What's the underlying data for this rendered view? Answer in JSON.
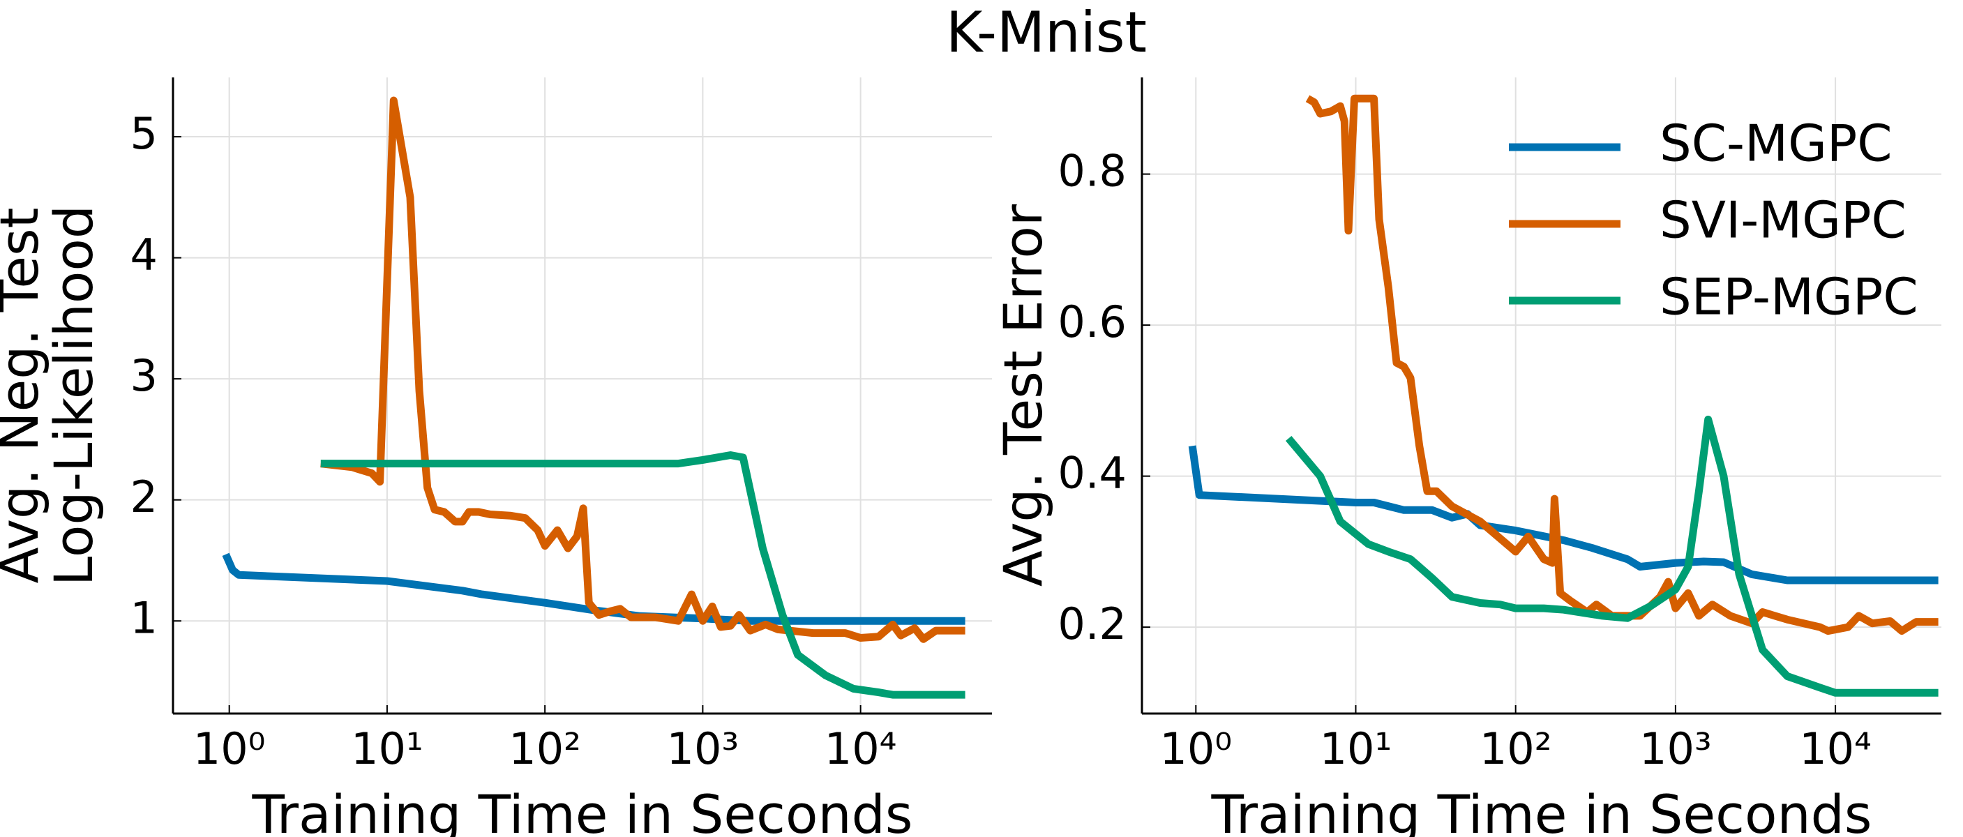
{
  "title": "K-Mnist",
  "chart_data": [
    {
      "type": "line",
      "xscale": "log",
      "grid": true,
      "legend": false,
      "xlabel": "Training Time in Seconds",
      "ylabel": [
        "Avg. Neg. Test",
        "Log-Likelihood"
      ],
      "xlim": [
        0.44,
        68000
      ],
      "ylim": [
        0.235,
        5.49
      ],
      "xticks": [
        {
          "value": 1,
          "label": "10⁰"
        },
        {
          "value": 10,
          "label": "10¹"
        },
        {
          "value": 100,
          "label": "10²"
        },
        {
          "value": 1000,
          "label": "10³"
        },
        {
          "value": 10000,
          "label": "10⁴"
        }
      ],
      "yticks": [
        1,
        2,
        3,
        4,
        5
      ],
      "series": [
        {
          "name": "SC-MGPC",
          "color": "#0072b2",
          "x": [
            0.95,
            1.05,
            1.15,
            10,
            30,
            40,
            100,
            200,
            400,
            1000,
            2000,
            46000
          ],
          "values": [
            1.55,
            1.42,
            1.38,
            1.33,
            1.25,
            1.22,
            1.15,
            1.09,
            1.04,
            1.02,
            1.0,
            1.0
          ]
        },
        {
          "name": "SVI-MGPC",
          "color": "#d55e00",
          "x": [
            3.8,
            6,
            8,
            9,
            11,
            14,
            16,
            18,
            20,
            23,
            27,
            30,
            33,
            38,
            45,
            60,
            75,
            90,
            100,
            120,
            140,
            160,
            175,
            190,
            220,
            260,
            300,
            350,
            500,
            700,
            850,
            1000,
            1150,
            1300,
            1500,
            1700,
            2000,
            2500,
            3000,
            5000,
            8000,
            10000,
            13000,
            16000,
            18000,
            22000,
            25000,
            30000,
            46000
          ],
          "values": [
            2.3,
            2.27,
            2.22,
            2.15,
            5.3,
            4.5,
            2.9,
            2.1,
            1.92,
            1.9,
            1.82,
            1.82,
            1.9,
            1.9,
            1.88,
            1.87,
            1.85,
            1.75,
            1.62,
            1.75,
            1.6,
            1.7,
            1.93,
            1.15,
            1.05,
            1.08,
            1.1,
            1.03,
            1.03,
            1.0,
            1.22,
            1.0,
            1.12,
            0.95,
            0.96,
            1.05,
            0.92,
            0.97,
            0.93,
            0.9,
            0.9,
            0.86,
            0.87,
            0.97,
            0.88,
            0.94,
            0.85,
            0.92,
            0.92
          ]
        },
        {
          "name": "SEP-MGPC",
          "color": "#009e73",
          "x": [
            3.8,
            700,
            1000,
            1500,
            1800,
            2400,
            3200,
            4000,
            6000,
            9000,
            13000,
            16000,
            46000
          ],
          "values": [
            2.3,
            2.3,
            2.33,
            2.37,
            2.35,
            1.6,
            1.05,
            0.72,
            0.55,
            0.44,
            0.41,
            0.39,
            0.39
          ]
        }
      ]
    },
    {
      "type": "line",
      "xscale": "log",
      "grid": true,
      "legend": "upper right",
      "xlabel": "Training Time in Seconds",
      "ylabel": [
        "Avg. Test Error"
      ],
      "xlim": [
        0.46,
        46000
      ],
      "ylim": [
        0.0856,
        0.928
      ],
      "xticks": [
        {
          "value": 1,
          "label": "10⁰"
        },
        {
          "value": 10,
          "label": "10¹"
        },
        {
          "value": 100,
          "label": "10²"
        },
        {
          "value": 1000,
          "label": "10³"
        },
        {
          "value": 10000,
          "label": "10⁴"
        }
      ],
      "yticks": [
        0.2,
        0.4,
        0.6,
        0.8
      ],
      "series": [
        {
          "name": "SC-MGPC",
          "color": "#0072b2",
          "x": [
            0.95,
            1.05,
            10,
            13,
            20,
            30,
            40,
            50,
            60,
            100,
            200,
            300,
            500,
            600,
            1000,
            1500,
            2000,
            3000,
            5000,
            44000
          ],
          "values": [
            0.44,
            0.375,
            0.365,
            0.365,
            0.355,
            0.355,
            0.345,
            0.35,
            0.335,
            0.328,
            0.315,
            0.305,
            0.29,
            0.28,
            0.285,
            0.287,
            0.286,
            0.27,
            0.262,
            0.262
          ]
        },
        {
          "name": "SVI-MGPC",
          "color": "#d55e00",
          "x": [
            5,
            5.5,
            6,
            7,
            8,
            8.5,
            9,
            9.8,
            13,
            14,
            16,
            18,
            20,
            22,
            25,
            28,
            32,
            40,
            60,
            100,
            120,
            150,
            170,
            175,
            190,
            220,
            280,
            320,
            400,
            600,
            800,
            900,
            1000,
            1200,
            1400,
            1700,
            2200,
            3000,
            3500,
            5000,
            8000,
            9000,
            12000,
            14000,
            17000,
            22000,
            26000,
            32000,
            44000
          ],
          "values": [
            0.9,
            0.895,
            0.88,
            0.883,
            0.89,
            0.87,
            0.725,
            0.9,
            0.9,
            0.74,
            0.65,
            0.55,
            0.545,
            0.53,
            0.44,
            0.38,
            0.38,
            0.36,
            0.34,
            0.3,
            0.32,
            0.29,
            0.285,
            0.37,
            0.245,
            0.235,
            0.22,
            0.23,
            0.215,
            0.215,
            0.24,
            0.26,
            0.225,
            0.245,
            0.215,
            0.23,
            0.215,
            0.205,
            0.22,
            0.21,
            0.2,
            0.195,
            0.2,
            0.215,
            0.205,
            0.208,
            0.195,
            0.207,
            0.207
          ]
        },
        {
          "name": "SEP-MGPC",
          "color": "#009e73",
          "x": [
            3.8,
            6,
            8,
            12,
            16,
            22,
            30,
            40,
            60,
            80,
            100,
            150,
            200,
            350,
            500,
            700,
            1000,
            1200,
            1400,
            1600,
            2000,
            2500,
            3500,
            5000,
            8000,
            10000,
            44000
          ],
          "values": [
            0.45,
            0.4,
            0.34,
            0.31,
            0.3,
            0.29,
            0.265,
            0.24,
            0.232,
            0.23,
            0.225,
            0.225,
            0.223,
            0.215,
            0.212,
            0.228,
            0.25,
            0.28,
            0.38,
            0.475,
            0.4,
            0.27,
            0.17,
            0.135,
            0.12,
            0.113,
            0.113
          ]
        }
      ]
    }
  ]
}
